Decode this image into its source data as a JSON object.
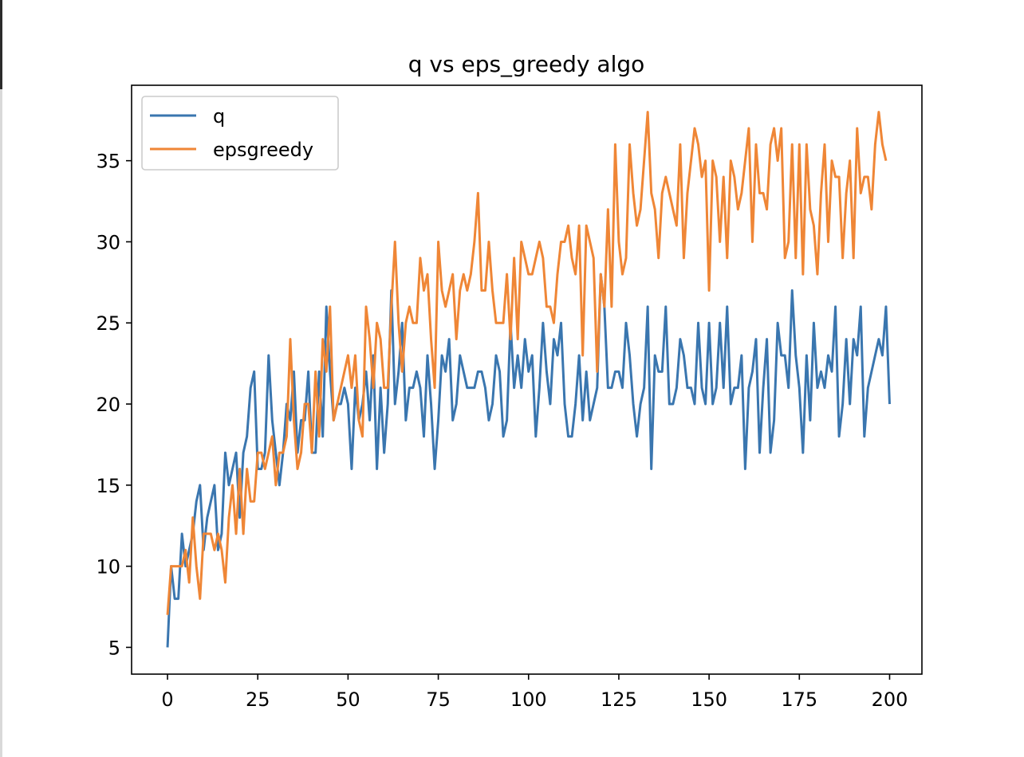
{
  "chart_data": {
    "type": "line",
    "title": "q  vs eps_greedy algo",
    "xlabel": "",
    "ylabel": "",
    "xlim": [
      -9.95,
      208.95
    ],
    "ylim": [
      3.35,
      39.65
    ],
    "xticks": [
      0,
      25,
      50,
      75,
      100,
      125,
      150,
      175,
      200
    ],
    "yticks": [
      5,
      10,
      15,
      20,
      25,
      30,
      35
    ],
    "grid": false,
    "legend": "top-left",
    "series": [
      {
        "name": "q",
        "color": "#3a76af",
        "values": [
          5,
          10,
          8,
          8,
          12,
          10,
          11,
          12,
          14,
          15,
          11,
          13,
          14,
          15,
          11,
          12,
          17,
          15,
          16,
          17,
          13,
          17,
          18,
          21,
          22,
          16,
          16,
          17,
          23,
          19,
          17,
          15,
          17,
          20,
          19,
          22,
          17,
          19,
          19,
          22,
          17,
          17,
          22,
          18,
          26,
          22,
          19,
          20,
          20,
          21,
          20,
          16,
          21,
          19,
          20,
          22,
          19,
          23,
          16,
          21,
          17,
          20,
          27,
          20,
          22,
          25,
          19,
          21,
          21,
          22,
          21,
          18,
          23,
          20,
          16,
          19,
          23,
          22,
          24,
          19,
          20,
          23,
          22,
          21,
          21,
          21,
          22,
          22,
          21,
          19,
          20,
          23,
          22,
          18,
          19,
          25,
          21,
          23,
          21,
          24,
          22,
          23,
          18,
          21,
          25,
          22,
          20,
          24,
          23,
          25,
          20,
          18,
          18,
          20,
          23,
          19,
          22,
          19,
          20,
          21,
          28,
          26,
          21,
          21,
          22,
          22,
          21,
          25,
          23,
          20,
          18,
          20,
          21,
          26,
          16,
          23,
          22,
          22,
          26,
          20,
          20,
          21,
          24,
          23,
          21,
          21,
          20,
          25,
          21,
          20,
          25,
          20,
          21,
          25,
          21,
          26,
          20,
          21,
          21,
          23,
          16,
          21,
          22,
          24,
          17,
          21,
          24,
          17,
          19,
          25,
          23,
          23,
          21,
          27,
          23,
          21,
          17,
          23,
          19,
          25,
          21,
          22,
          21,
          23,
          22,
          26,
          18,
          20,
          24,
          20,
          24,
          23,
          26,
          18,
          21,
          22,
          23,
          24,
          23,
          26,
          20
        ],
        "x_start": 0
      },
      {
        "name": "epsgreedy",
        "color": "#ef8636",
        "values": [
          7,
          10,
          10,
          10,
          10,
          11,
          9,
          13,
          10,
          8,
          12,
          12,
          12,
          11,
          12,
          11,
          9,
          13,
          15,
          12,
          16,
          12,
          16,
          14,
          14,
          17,
          17,
          16,
          17,
          18,
          15,
          17,
          17,
          18,
          24,
          19,
          16,
          17,
          20,
          20,
          17,
          22,
          18,
          24,
          22,
          26,
          19,
          20,
          21,
          22,
          23,
          21,
          23,
          19,
          18,
          26,
          24,
          21,
          25,
          24,
          21,
          21,
          26,
          30,
          25,
          22,
          25,
          26,
          25,
          25,
          29,
          27,
          28,
          24,
          21,
          30,
          27,
          26,
          27,
          28,
          24,
          27,
          28,
          27,
          28,
          30,
          33,
          27,
          27,
          30,
          27,
          25,
          25,
          25,
          28,
          24,
          29,
          24,
          30,
          29,
          28,
          28,
          29,
          30,
          29,
          26,
          26,
          25,
          28,
          30,
          30,
          31,
          29,
          28,
          31,
          23,
          31,
          30,
          29,
          22,
          28,
          26,
          32,
          26,
          36,
          30,
          28,
          29,
          36,
          33,
          31,
          32,
          35,
          38,
          33,
          32,
          29,
          33,
          34,
          33,
          32,
          31,
          36,
          29,
          33,
          35,
          37,
          36,
          34,
          35,
          27,
          35,
          34,
          30,
          34,
          29,
          35,
          34,
          32,
          33,
          35,
          37,
          30,
          36,
          33,
          33,
          32,
          36,
          37,
          35,
          37,
          29,
          30,
          36,
          29,
          36,
          28,
          36,
          32,
          31,
          28,
          33,
          36,
          30,
          35,
          34,
          34,
          29,
          33,
          35,
          29,
          37,
          33,
          34,
          34,
          32,
          36,
          38,
          36,
          35
        ]
      }
    ]
  }
}
